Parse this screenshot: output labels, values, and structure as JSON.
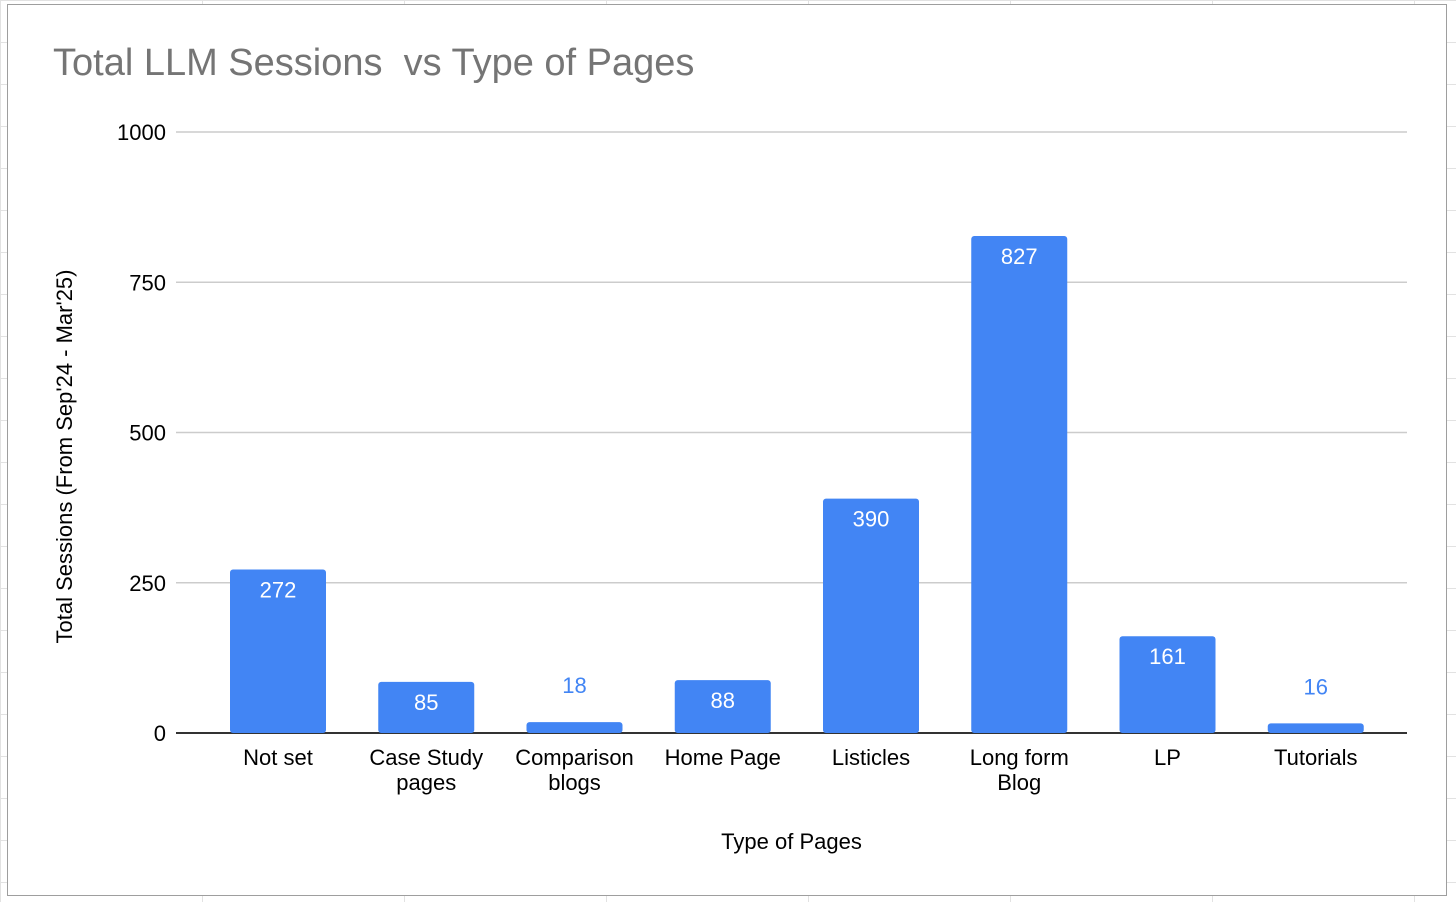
{
  "chart_data": {
    "type": "bar",
    "title": "Total LLM Sessions  vs Type of Pages",
    "xlabel": "Type of Pages",
    "ylabel": "Total Sessions (From Sep'24 - Mar'25)",
    "categories": [
      [
        "Not set"
      ],
      [
        "Case Study",
        "pages"
      ],
      [
        "Comparison",
        "blogs"
      ],
      [
        "Home Page"
      ],
      [
        "Listicles"
      ],
      [
        "Long form",
        "Blog"
      ],
      [
        "LP"
      ],
      [
        "Tutorials"
      ]
    ],
    "values": [
      272,
      85,
      18,
      88,
      390,
      827,
      161,
      16
    ],
    "ylim": [
      0,
      1000
    ],
    "yticks": [
      0,
      250,
      500,
      750,
      1000
    ],
    "grid": true,
    "legend": "none",
    "colors": {
      "bar": "#4285f4",
      "label_inside": "#ffffff",
      "label_outside": "#4285f4",
      "grid": "#cccccc",
      "title": "#757575"
    }
  }
}
